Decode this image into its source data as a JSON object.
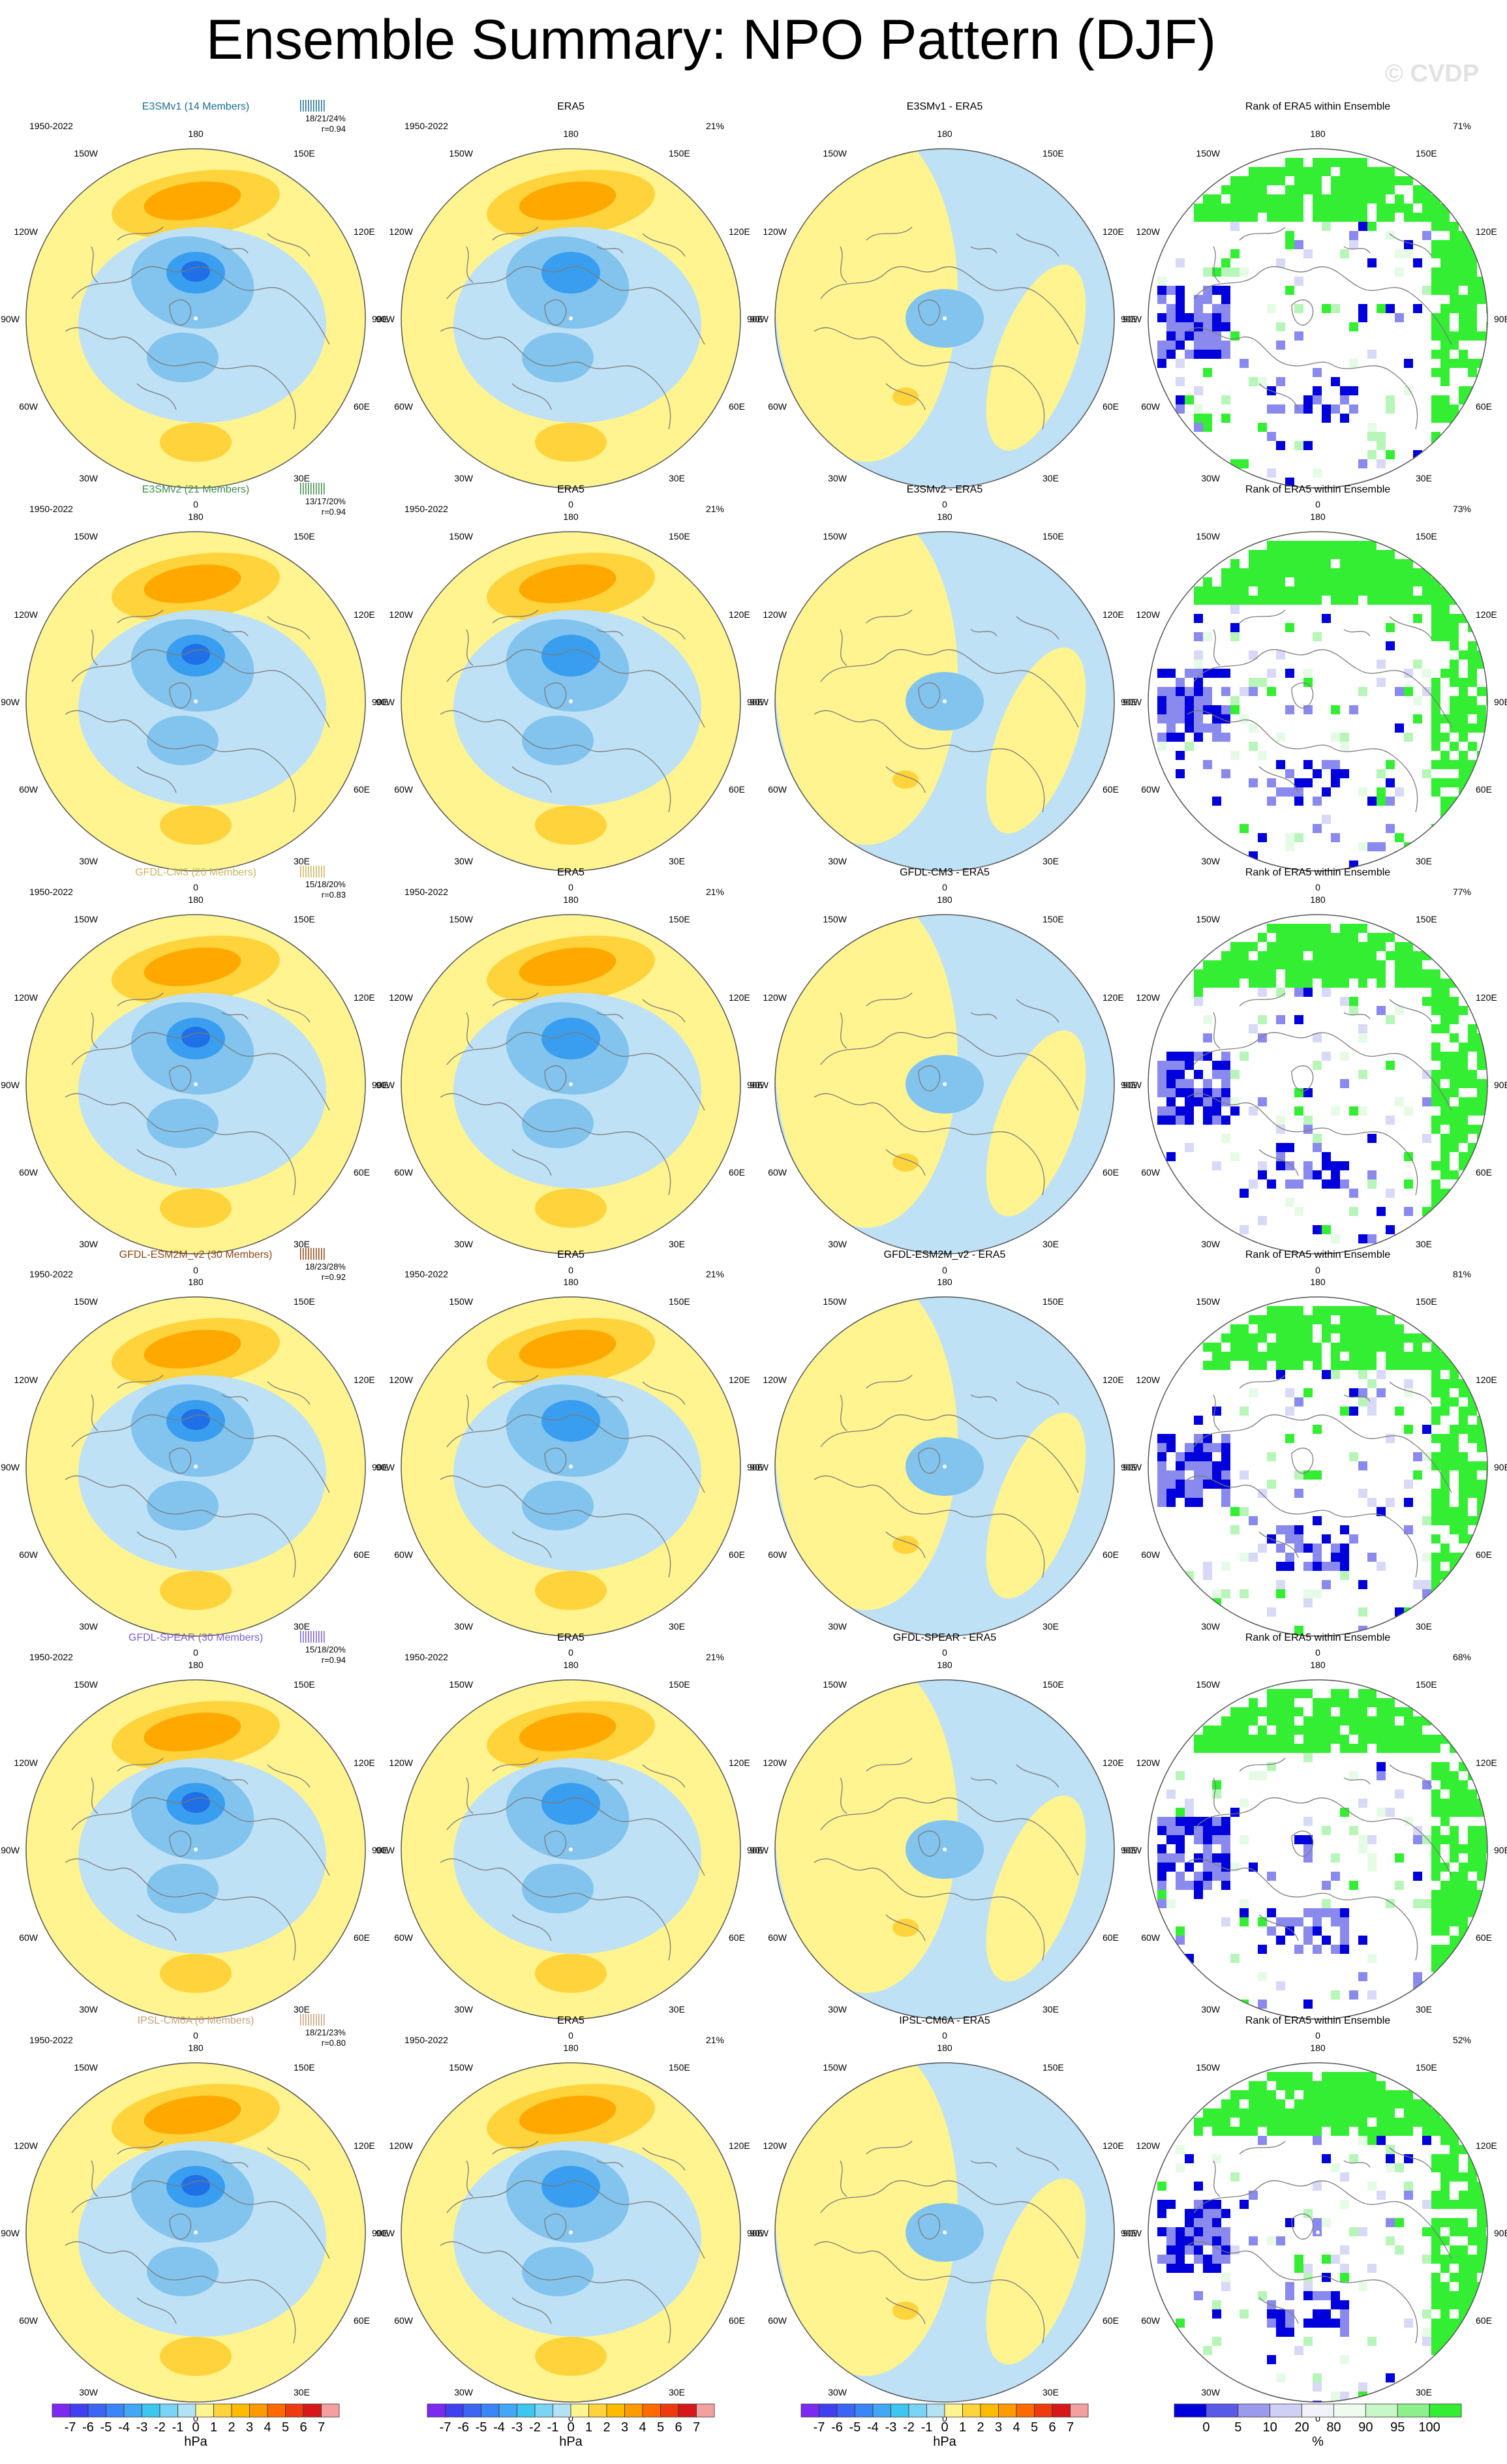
{
  "title": "Ensemble Summary: NPO Pattern (DJF)",
  "watermark": "© CVDP",
  "colors": {
    "pos1": "#fff48f",
    "pos2": "#ffd33b",
    "pos3": "#ffa800",
    "neg1": "#bfe1f5",
    "neg2": "#82c4ee",
    "neg3": "#3a9ef0",
    "neg4": "#1f6fe6",
    "rankLow1": "#0000dd",
    "rankLow2": "#8a8aee",
    "rankLow3": "#d8d8f7",
    "rankHigh1": "#33ee33",
    "rankHigh2": "#b8f5b8",
    "rankHigh3": "#e6fbe6",
    "coast": "#7a7a7a",
    "frame": "#555555"
  },
  "lon_labels": {
    "top": "180",
    "upper_left": "150W",
    "upper_right": "150E",
    "left_upper": "120W",
    "right_upper": "120E",
    "left": "90W",
    "right": "90E",
    "left_lower": "60W",
    "right_lower": "60E",
    "lower_left": "30W",
    "lower_right": "30E",
    "bottom": "0"
  },
  "period": "1950-2022",
  "col_titles": {
    "obs": "ERA5",
    "rank": "Rank of ERA5 within Ensemble"
  },
  "obs_pct": "21%",
  "rows": [
    {
      "model_title": "E3SMv1 (14 Members)",
      "model_color": "#1a6e8c",
      "bars_color": "#1a6e8c",
      "stats": "18/21/24%",
      "r": "r=0.94",
      "diff_title": "E3SMv1 - ERA5",
      "rank_pct": "71%"
    },
    {
      "model_title": "E3SMv2 (21 Members)",
      "model_color": "#3d8c4a",
      "bars_color": "#3d8c4a",
      "stats": "13/17/20%",
      "r": "r=0.94",
      "diff_title": "E3SMv2 - ERA5",
      "rank_pct": "73%"
    },
    {
      "model_title": "GFDL-CM3 (20 Members)",
      "model_color": "#c8b45a",
      "bars_color": "#c8b45a",
      "stats": "15/18/20%",
      "r": "r=0.83",
      "diff_title": "GFDL-CM3 - ERA5",
      "rank_pct": "77%"
    },
    {
      "model_title": "GFDL-ESM2M_v2 (30 Members)",
      "model_color": "#8b4513",
      "bars_color": "#8b4513",
      "stats": "18/23/28%",
      "r": "r=0.92",
      "diff_title": "GFDL-ESM2M_v2 - ERA5",
      "rank_pct": "81%"
    },
    {
      "model_title": "GFDL-SPEAR (30 Members)",
      "model_color": "#7a5ec8",
      "bars_color": "#7a5ec8",
      "stats": "15/18/20%",
      "r": "r=0.94",
      "diff_title": "GFDL-SPEAR - ERA5",
      "rank_pct": "68%"
    },
    {
      "model_title": "IPSL-CM6A (6 Members)",
      "model_color": "#c8a078",
      "bars_color": "#c8a078",
      "stats": "18/21/23%",
      "r": "r=0.80",
      "diff_title": "IPSL-CM6A - ERA5",
      "rank_pct": "52%"
    }
  ],
  "colorbar_hpa": {
    "colors": [
      "#7d2af0",
      "#4040f0",
      "#3c64f5",
      "#3a86f8",
      "#42a8f5",
      "#3cc6f0",
      "#7ad4f5",
      "#b4e2f5",
      "#fff48f",
      "#ffd33b",
      "#ffbb00",
      "#ff9a00",
      "#ff6a00",
      "#ef3a10",
      "#d81818",
      "#f4a0a0"
    ],
    "labels": [
      "-7",
      "-6",
      "-5",
      "-4",
      "-3",
      "-2",
      "-1",
      "0",
      "1",
      "2",
      "3",
      "4",
      "5",
      "6",
      "7"
    ],
    "unit": "hPa"
  },
  "colorbar_rank": {
    "colors": [
      "#0000dd",
      "#5a5ae8",
      "#9a9aee",
      "#d0d0f5",
      "#f2f2fb",
      "#eefbee",
      "#c8f7c8",
      "#8cf18c",
      "#33ee33"
    ],
    "labels": [
      "0",
      "5",
      "10",
      "20",
      "80",
      "90",
      "95",
      "100"
    ],
    "unit": "%"
  }
}
